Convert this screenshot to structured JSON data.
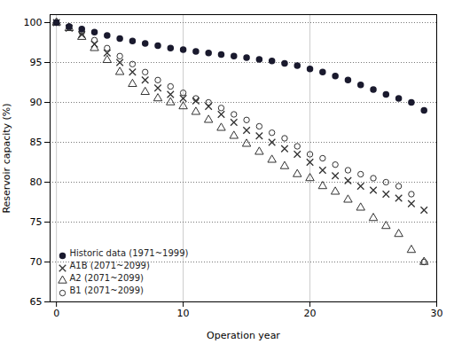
{
  "chart_data": {
    "type": "scatter",
    "xlabel": "Operation year",
    "ylabel": "Reservoir capacity (%)",
    "xlim": [
      -0.5,
      30
    ],
    "ylim": [
      65,
      101
    ],
    "xticks": [
      0,
      10,
      20,
      30
    ],
    "yticks": [
      65,
      70,
      75,
      80,
      85,
      90,
      95,
      100
    ],
    "grid": true,
    "legend": "lower left",
    "x": [
      0,
      1,
      2,
      3,
      4,
      5,
      6,
      7,
      8,
      9,
      10,
      11,
      12,
      13,
      14,
      15,
      16,
      17,
      18,
      19,
      20,
      21,
      22,
      23,
      24,
      25,
      26,
      27,
      28,
      29
    ],
    "series": [
      {
        "name": "Historic data (1971~1999)",
        "color": "#1a1a2e",
        "marker": "filled_circle",
        "values": [
          100,
          99.5,
          99.2,
          98.8,
          98.4,
          98.0,
          97.7,
          97.4,
          97.1,
          96.8,
          96.6,
          96.4,
          96.2,
          96.0,
          95.8,
          95.6,
          95.4,
          95.2,
          94.9,
          94.6,
          94.2,
          93.8,
          93.3,
          92.8,
          92.2,
          91.6,
          91.0,
          90.5,
          90.0,
          89.0
        ]
      },
      {
        "name": "A1B (2071~2099)",
        "color": "#333333",
        "marker": "x",
        "values": [
          100,
          99.3,
          98.5,
          97.3,
          96.2,
          95.0,
          93.8,
          92.8,
          91.8,
          91.0,
          90.5,
          90.2,
          89.5,
          88.5,
          87.5,
          86.5,
          85.8,
          85.0,
          84.2,
          83.5,
          82.5,
          81.5,
          80.8,
          80.2,
          79.5,
          79.0,
          78.5,
          78.0,
          77.3,
          76.5
        ]
      },
      {
        "name": "A2 (2071~2099)",
        "color": "#333333",
        "marker": "open_triangle",
        "values": [
          100,
          99.3,
          98.2,
          96.8,
          95.3,
          93.8,
          92.3,
          91.3,
          90.5,
          90.0,
          89.5,
          88.8,
          87.8,
          86.8,
          85.8,
          84.8,
          83.8,
          82.8,
          82.0,
          81.0,
          80.5,
          79.5,
          78.8,
          77.8,
          76.8,
          75.5,
          74.5,
          73.5,
          71.5,
          70.0
        ]
      },
      {
        "name": "B1 (2071~2099)",
        "color": "#333333",
        "marker": "open_circle",
        "values": [
          100,
          99.5,
          98.8,
          97.8,
          96.8,
          95.8,
          94.8,
          93.8,
          92.8,
          92.0,
          91.2,
          90.5,
          90.0,
          89.3,
          88.5,
          87.8,
          87.0,
          86.2,
          85.5,
          84.5,
          83.5,
          83.0,
          82.2,
          81.5,
          81.0,
          80.5,
          80.0,
          79.5,
          78.5,
          70.0
        ]
      }
    ]
  }
}
